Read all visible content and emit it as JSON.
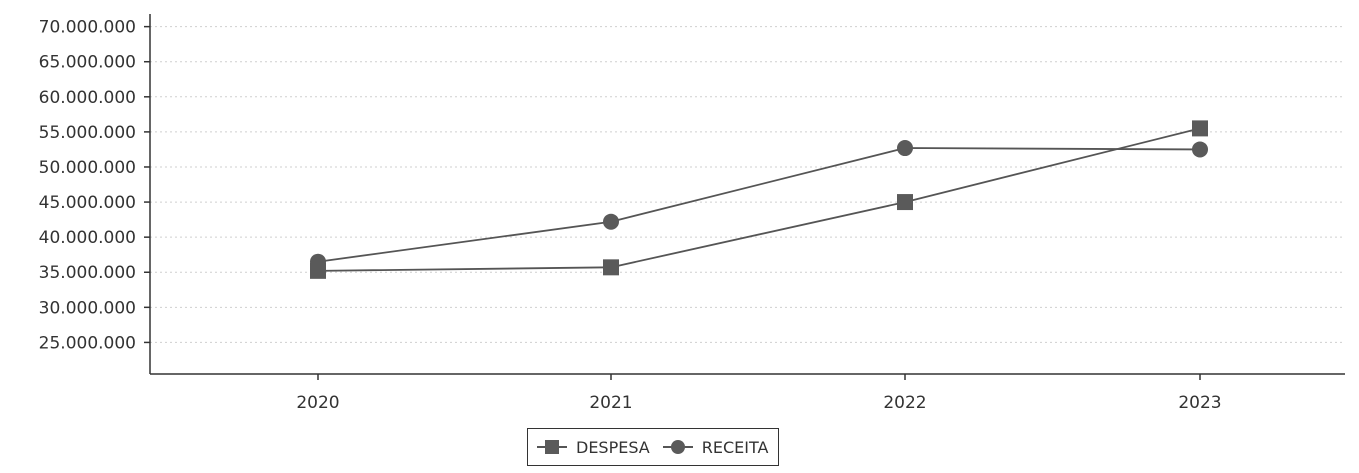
{
  "chart_data": {
    "type": "line",
    "categories": [
      "2020",
      "2021",
      "2022",
      "2023"
    ],
    "series": [
      {
        "name": "DESPESA",
        "marker": "square",
        "values": [
          35200000,
          35700000,
          45000000,
          55500000
        ]
      },
      {
        "name": "RECEITA",
        "marker": "circle",
        "values": [
          36500000,
          42200000,
          52700000,
          52500000
        ]
      }
    ],
    "yticks": [
      "70.000.000",
      "65.000.000",
      "60.000.000",
      "55.000.000",
      "50.000.000",
      "45.000.000",
      "40.000.000",
      "35.000.000",
      "30.000.000",
      "25.000.000"
    ],
    "ytick_values": [
      70000000,
      65000000,
      60000000,
      55000000,
      50000000,
      45000000,
      40000000,
      35000000,
      30000000,
      25000000
    ],
    "ylim": [
      20500000,
      71800000
    ],
    "title": "",
    "xlabel": "",
    "ylabel": "",
    "grid": true,
    "legend_position": "bottom-center",
    "colors": {
      "line": "#555555",
      "marker": "#5a5a5a",
      "grid": "#cfcfcf",
      "axis": "#333333",
      "text": "#333333"
    }
  }
}
